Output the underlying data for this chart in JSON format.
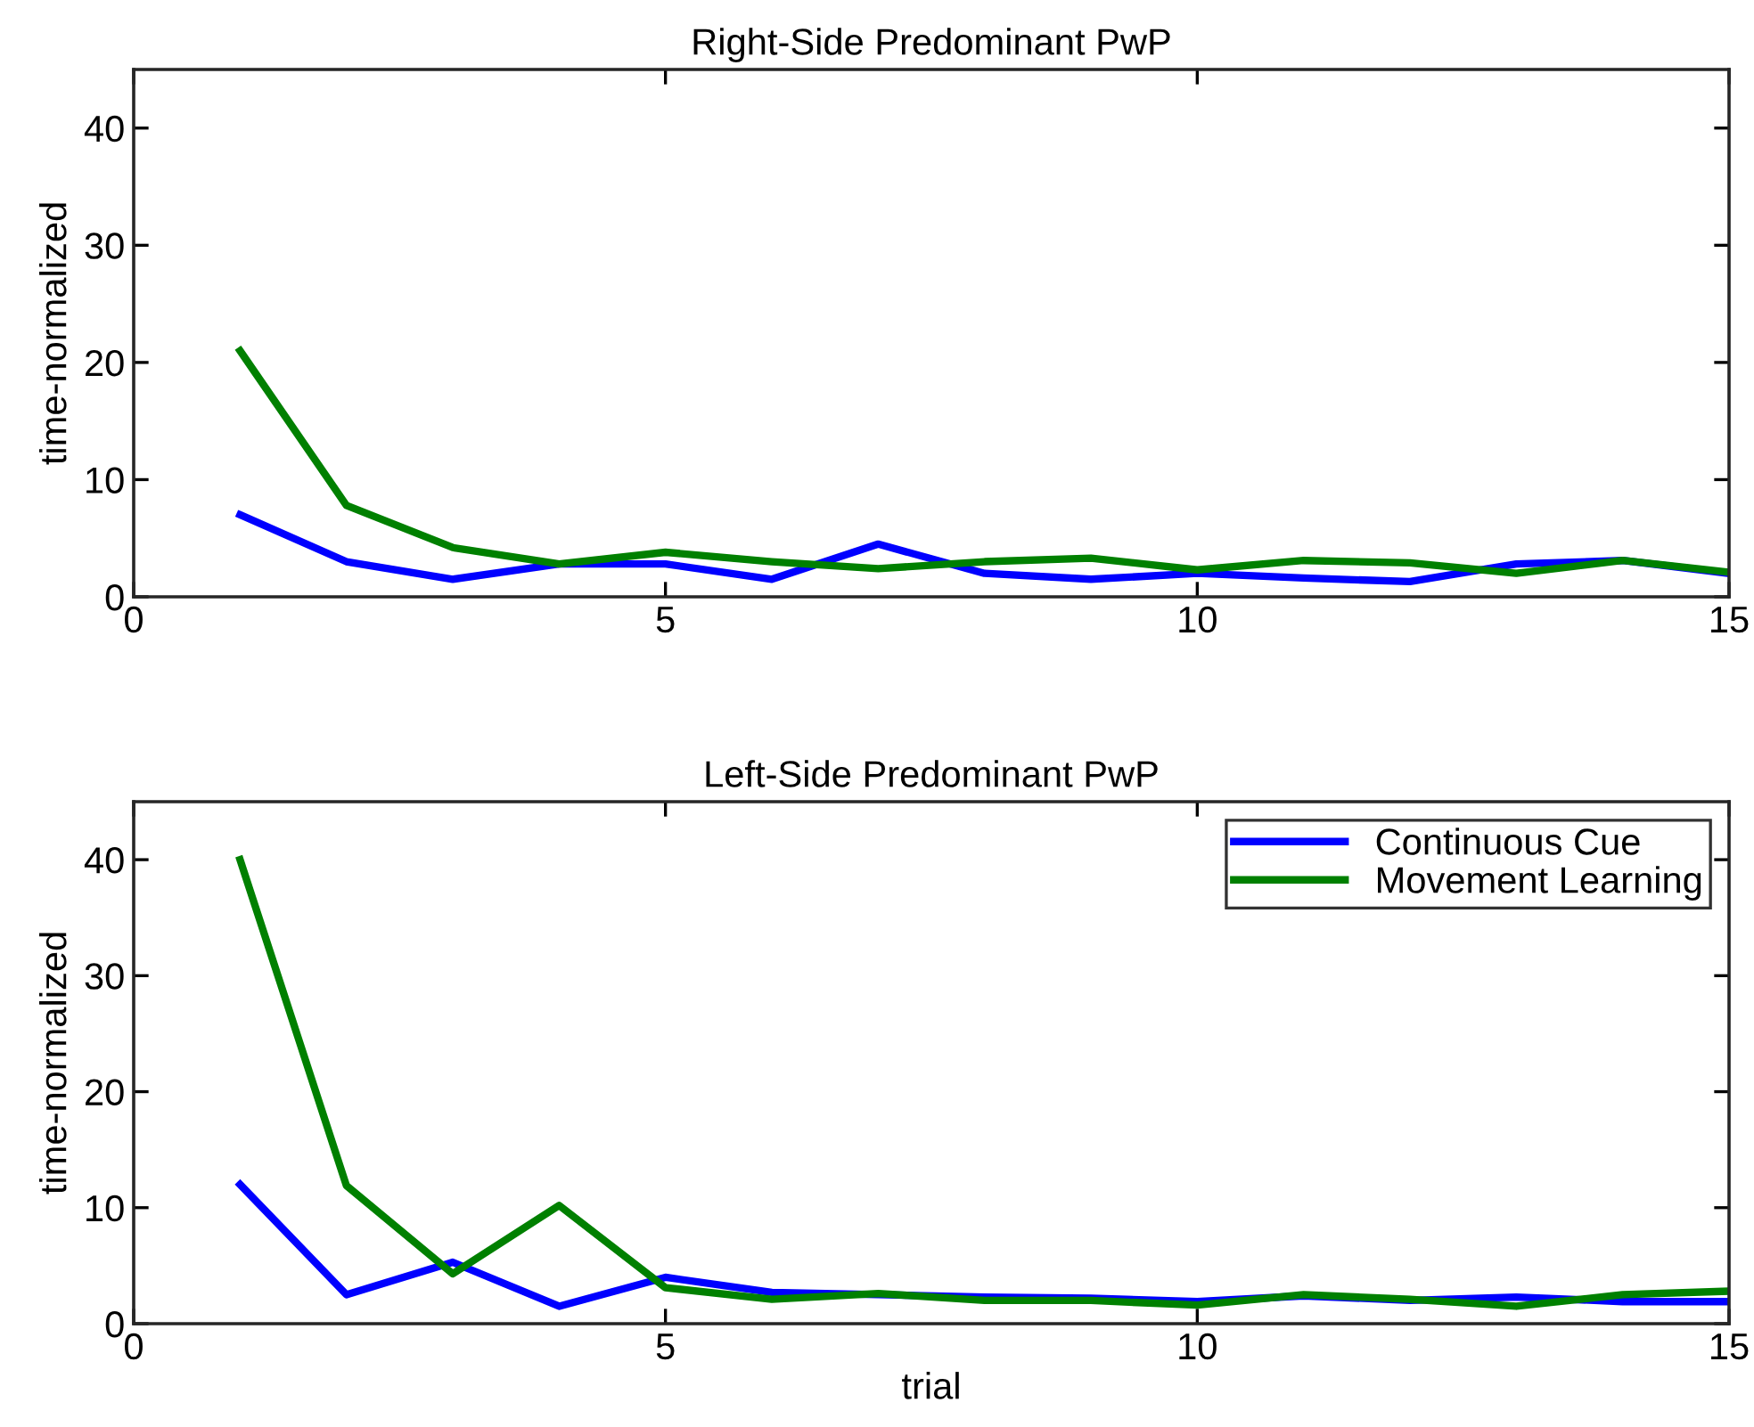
{
  "chart_data": [
    {
      "type": "line",
      "title": "Right-Side Predominant PwP",
      "ylabel": "time-normalized",
      "x": [
        1,
        2,
        3,
        4,
        5,
        6,
        7,
        8,
        9,
        10,
        11,
        12,
        13,
        14,
        15
      ],
      "xlim": [
        0,
        15
      ],
      "xticks": [
        0,
        5,
        10,
        15
      ],
      "ylim": [
        0,
        45
      ],
      "yticks": [
        0,
        10,
        20,
        30,
        40
      ],
      "grid": false,
      "legend": false,
      "series": [
        {
          "color": "#0000ff",
          "values": [
            7,
            3,
            1.5,
            2.8,
            2.8,
            1.5,
            4.5,
            2,
            1.5,
            2,
            1.6,
            1.3,
            2.8,
            3.1,
            2.0
          ]
        },
        {
          "color": "#008000",
          "values": [
            21,
            7.8,
            4.2,
            2.8,
            3.8,
            3,
            2.4,
            3,
            3.3,
            2.3,
            3.1,
            2.9,
            2,
            3.1,
            2.1
          ]
        }
      ]
    },
    {
      "type": "line",
      "title": "Left-Side Predominant PwP",
      "xlabel": "trial",
      "ylabel": "time-normalized",
      "x": [
        1,
        2,
        3,
        4,
        5,
        6,
        7,
        8,
        9,
        10,
        11,
        12,
        13,
        14,
        15
      ],
      "xlim": [
        0,
        15
      ],
      "xticks": [
        0,
        5,
        10,
        15
      ],
      "ylim": [
        0,
        45
      ],
      "yticks": [
        0,
        10,
        20,
        30,
        40
      ],
      "grid": false,
      "legend": "top right",
      "series": [
        {
          "name": "Continuous Cue",
          "color": "#0000ff",
          "values": [
            12,
            2.5,
            5.3,
            1.5,
            4,
            2.7,
            2.5,
            2.3,
            2.2,
            1.9,
            2.4,
            2.0,
            2.3,
            1.9,
            1.9
          ]
        },
        {
          "name": "Movement Learning",
          "color": "#008000",
          "values": [
            40,
            11.9,
            4.3,
            10.2,
            3.1,
            2.1,
            2.6,
            2.0,
            2.0,
            1.6,
            2.5,
            2.1,
            1.5,
            2.5,
            2.8
          ]
        }
      ]
    }
  ]
}
